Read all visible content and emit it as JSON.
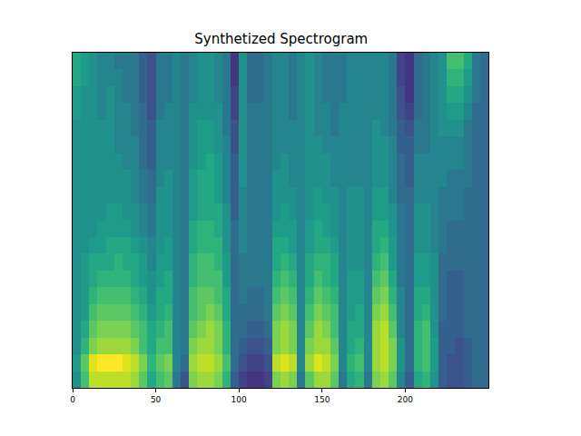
{
  "chart_data": {
    "type": "heatmap",
    "title": "Synthetized Spectrogram",
    "color": "viridis",
    "tick_labels": "x",
    "xlim": [
      0,
      250
    ],
    "xticks": [
      0,
      50,
      100,
      150,
      200
    ],
    "ylim": [
      -0.5,
      19.5
    ],
    "zlim": [
      0,
      10
    ],
    "x": [
      2.5,
      7.5,
      12.5,
      17.5,
      22.5,
      27.5,
      32.5,
      37.5,
      42.5,
      47.5,
      52.5,
      57.5,
      62.5,
      67.5,
      72.5,
      77.5,
      82.5,
      87.5,
      92.5,
      97.5,
      102.5,
      107.5,
      112.5,
      117.5,
      122.5,
      127.5,
      132.5,
      137.5,
      142.5,
      147.5,
      152.5,
      157.5,
      162.5,
      167.5,
      172.5,
      177.5,
      182.5,
      187.5,
      192.5,
      197.5,
      202.5,
      207.5,
      212.5,
      217.5,
      222.5,
      227.5,
      232.5,
      237.5,
      242.5,
      247.5
    ],
    "y": [
      0,
      1,
      2,
      3,
      4,
      5,
      6,
      7,
      8,
      9,
      10,
      11,
      12,
      13,
      14,
      15,
      16,
      17,
      18,
      19
    ],
    "cells_by_x": [
      [
        5,
        5.5,
        5,
        5,
        5,
        5,
        5,
        5,
        5,
        5,
        5,
        5,
        5,
        5,
        5,
        5,
        5.5,
        5.5,
        6,
        6
      ],
      [
        7,
        7.5,
        6.5,
        6,
        5.5,
        5.5,
        5.5,
        5.5,
        5,
        5,
        5,
        5,
        5,
        5,
        5,
        5,
        5,
        5,
        5.5,
        5.5
      ],
      [
        9,
        9.5,
        8,
        7.5,
        7,
        6.5,
        6,
        6,
        5.5,
        5,
        5,
        5,
        5,
        5,
        5,
        5,
        5,
        5,
        5,
        5
      ],
      [
        9,
        10,
        8.5,
        8,
        7.5,
        7,
        6.5,
        6,
        5.5,
        5.5,
        5,
        5,
        5,
        5,
        5,
        5,
        4.5,
        4.5,
        4.5,
        4.5
      ],
      [
        9,
        10,
        8.5,
        8,
        7.5,
        7,
        6.5,
        6,
        6,
        5.5,
        5.5,
        5,
        5,
        5,
        5,
        5,
        5,
        5,
        4.5,
        4.5
      ],
      [
        9,
        10,
        8.5,
        8,
        7.5,
        7,
        6.5,
        6.5,
        6,
        5.5,
        5.5,
        5,
        5,
        5,
        4.5,
        4.5,
        4.5,
        4.5,
        4.5,
        4
      ],
      [
        9,
        9.5,
        8.5,
        8,
        7.5,
        7,
        6.5,
        6,
        6,
        5.5,
        5,
        5,
        5,
        4.5,
        4.5,
        4.5,
        4.5,
        4,
        4,
        4
      ],
      [
        8.5,
        9,
        8,
        7.5,
        7,
        6.5,
        6,
        6,
        5.5,
        5,
        5,
        4.5,
        4.5,
        4.5,
        4.5,
        4,
        4,
        4,
        4,
        4
      ],
      [
        7.5,
        8,
        7,
        7,
        6.5,
        6,
        5.5,
        5.5,
        5,
        4.5,
        4.5,
        4,
        4,
        3.5,
        3.5,
        3.5,
        3.5,
        3,
        3,
        3
      ],
      [
        6,
        6.5,
        6,
        6,
        5.5,
        5,
        5,
        4.5,
        4.5,
        4,
        4,
        3.5,
        3.5,
        3,
        3,
        3,
        2.5,
        2.5,
        2.5,
        2.5
      ],
      [
        7,
        7.5,
        7,
        6.5,
        6,
        6,
        5.5,
        5.5,
        5,
        5,
        5,
        5,
        4.5,
        4.5,
        4.5,
        4.5,
        4,
        4,
        4,
        4
      ],
      [
        7.5,
        8,
        7,
        7,
        6.5,
        6,
        6,
        5.5,
        5.5,
        5,
        5,
        5,
        5,
        4.5,
        4.5,
        4.5,
        4.5,
        4,
        4,
        4
      ],
      [
        4,
        4.5,
        4.5,
        4.5,
        4.5,
        4.5,
        4.5,
        4.5,
        4.5,
        4.5,
        4.5,
        4.5,
        4.5,
        4.5,
        4.5,
        4.5,
        4.5,
        4.5,
        4.5,
        4.5
      ],
      [
        2.5,
        3.5,
        4,
        4,
        4,
        4,
        4,
        4,
        4,
        4,
        4,
        4,
        4,
        4,
        4,
        4,
        4,
        4,
        4,
        4
      ],
      [
        8,
        8.5,
        8,
        7.5,
        7,
        7,
        6.5,
        6.5,
        6,
        6,
        5.5,
        5.5,
        5.5,
        5,
        5,
        5,
        5,
        4.5,
        4.5,
        4.5
      ],
      [
        8.5,
        9,
        8.5,
        8,
        7.5,
        7.5,
        7,
        7,
        6.5,
        6.5,
        6,
        6,
        6,
        5.5,
        5.5,
        5.5,
        5,
        5,
        5,
        5
      ],
      [
        8.5,
        9,
        8.5,
        8.5,
        8,
        7.5,
        7,
        7,
        6.5,
        6.5,
        6,
        6,
        6,
        6,
        5.5,
        5.5,
        5,
        5,
        5,
        5
      ],
      [
        8,
        8.5,
        8,
        8,
        7.5,
        7,
        7,
        6.5,
        6.5,
        6,
        6,
        5.5,
        5.5,
        5.5,
        5,
        5,
        5,
        4.5,
        4.5,
        4.5
      ],
      [
        6.5,
        7,
        6.5,
        6.5,
        6,
        6,
        5.5,
        5.5,
        5,
        5,
        5,
        4.5,
        4.5,
        4.5,
        4.5,
        4,
        4,
        4,
        4,
        4
      ],
      [
        3,
        3.5,
        3.5,
        3.5,
        3.5,
        3.5,
        3.5,
        3.5,
        3.5,
        3.5,
        3,
        3,
        3,
        3,
        2.5,
        2.5,
        2,
        2,
        1.5,
        1.5
      ],
      [
        2,
        2.5,
        3,
        3.5,
        3.5,
        4,
        4,
        4,
        4.5,
        4.5,
        4.5,
        4.5,
        5,
        5,
        5,
        5,
        5,
        5,
        5,
        5
      ],
      [
        1.5,
        2,
        2.5,
        3,
        3.5,
        3.5,
        4,
        4,
        4,
        4,
        4,
        4,
        4,
        4,
        4,
        4,
        4,
        3.5,
        3.5,
        3.5
      ],
      [
        1.5,
        2,
        2.5,
        3,
        3.5,
        3.5,
        4,
        4,
        4,
        4,
        4,
        4,
        4,
        4,
        4,
        4,
        4,
        3.5,
        3.5,
        3.5
      ],
      [
        2,
        2.5,
        3,
        3.5,
        4,
        4,
        4,
        4,
        4,
        4,
        4,
        4,
        4,
        4,
        4,
        4,
        4,
        4,
        4,
        4
      ],
      [
        8,
        9,
        8,
        8,
        7.5,
        7,
        6.5,
        6,
        6,
        5.5,
        5,
        5,
        5,
        4.5,
        4.5,
        4.5,
        4.5,
        4.5,
        4.5,
        4.5
      ],
      [
        8.5,
        9.5,
        8.5,
        8.5,
        8,
        7.5,
        7,
        6.5,
        6,
        5.5,
        5.5,
        5,
        5,
        5,
        4.5,
        4.5,
        4.5,
        4.5,
        4.5,
        4.5
      ],
      [
        8,
        9,
        8,
        8,
        7.5,
        7,
        6.5,
        6,
        5.5,
        5.5,
        5,
        5,
        4.5,
        4.5,
        4.5,
        4.5,
        4,
        4,
        4,
        4
      ],
      [
        4,
        4.5,
        4.5,
        4.5,
        4.5,
        4.5,
        4.5,
        4.5,
        4.5,
        4.5,
        4.5,
        4.5,
        4.5,
        4.5,
        4.5,
        4.5,
        4.5,
        4.5,
        4.5,
        4.5
      ],
      [
        7.5,
        8.5,
        8,
        7.5,
        7,
        6.5,
        6,
        6,
        5.5,
        5.5,
        5,
        5,
        5,
        5,
        5,
        5,
        5,
        5,
        5,
        5
      ],
      [
        8.5,
        9.5,
        8.5,
        8.5,
        8,
        7.5,
        7,
        6.5,
        6,
        6,
        5.5,
        5.5,
        5,
        5,
        5,
        4.5,
        4.5,
        4.5,
        4.5,
        4.5
      ],
      [
        8.5,
        9,
        8.5,
        8,
        7.5,
        7,
        6.5,
        6.5,
        6,
        5.5,
        5.5,
        5,
        5,
        5,
        4.5,
        4.5,
        4.5,
        4,
        4,
        4
      ],
      [
        7.5,
        8,
        7.5,
        7,
        7,
        6.5,
        6,
        6,
        5.5,
        5,
        5,
        5,
        4.5,
        4.5,
        4.5,
        4,
        4,
        4,
        4,
        4
      ],
      [
        4,
        4.5,
        4.5,
        4.5,
        4.5,
        4.5,
        4.5,
        4.5,
        4.5,
        4.5,
        4.5,
        4.5,
        4.5,
        4.5,
        4.5,
        4.5,
        4.5,
        4,
        4,
        4
      ],
      [
        6,
        6.5,
        6,
        6,
        5.5,
        5.5,
        5.5,
        5,
        5,
        5,
        5,
        5,
        4.5,
        4.5,
        4.5,
        4.5,
        4.5,
        4.5,
        4.5,
        4.5
      ],
      [
        6.5,
        7,
        6.5,
        6,
        6,
        5.5,
        5.5,
        5,
        5,
        5,
        5,
        5,
        4.5,
        4.5,
        4.5,
        4.5,
        4.5,
        4.5,
        4.5,
        4.5
      ],
      [
        4,
        4.5,
        4.5,
        4.5,
        4.5,
        4.5,
        4.5,
        4.5,
        4.5,
        4.5,
        4.5,
        4.5,
        4.5,
        4.5,
        4.5,
        4.5,
        4.5,
        4.5,
        4.5,
        4.5
      ],
      [
        8,
        8.5,
        8.5,
        8.5,
        8,
        7.5,
        7,
        6.5,
        6,
        6,
        5.5,
        5.5,
        5,
        5,
        5,
        5,
        4.5,
        4.5,
        4.5,
        4.5
      ],
      [
        8.5,
        9,
        9,
        9,
        8.5,
        8,
        7.5,
        7,
        6.5,
        6,
        5.5,
        5.5,
        5,
        5,
        5,
        4.5,
        4.5,
        4.5,
        4.5,
        4.5
      ],
      [
        7.5,
        8,
        8,
        7.5,
        7,
        6.5,
        6,
        5.5,
        5.5,
        5,
        5,
        4.5,
        4.5,
        4.5,
        4.5,
        4,
        4,
        4,
        4,
        4
      ],
      [
        4.5,
        5,
        5,
        4.5,
        4.5,
        4.5,
        4,
        4,
        4,
        4,
        4,
        3.5,
        3.5,
        3.5,
        3,
        3,
        2.5,
        2.5,
        2,
        2
      ],
      [
        3,
        3.5,
        3.5,
        3.5,
        3.5,
        3.5,
        3.5,
        3.5,
        3.5,
        3.5,
        3.5,
        3.5,
        3,
        3,
        3,
        2.5,
        2,
        1.5,
        1.5,
        1.5
      ],
      [
        6,
        6.5,
        6.5,
        6.5,
        6,
        6,
        5.5,
        5.5,
        5,
        5,
        5,
        4.5,
        4.5,
        4.5,
        4,
        4,
        3.5,
        3.5,
        3.5,
        3.5
      ],
      [
        6.5,
        7,
        7,
        7,
        6.5,
        6,
        5.5,
        5.5,
        5,
        5,
        5,
        4.5,
        4.5,
        4.5,
        4,
        4,
        4,
        4,
        4,
        4
      ],
      [
        5,
        5.5,
        5.5,
        5,
        5,
        5,
        5,
        5,
        4.5,
        4.5,
        4.5,
        4.5,
        4.5,
        4.5,
        4.5,
        4.5,
        4.5,
        4.5,
        4.5,
        4.5
      ],
      [
        3,
        3,
        3,
        3,
        3.5,
        3.5,
        3.5,
        3.5,
        4,
        4,
        4,
        4,
        4.5,
        4.5,
        4.5,
        5,
        5,
        5,
        5,
        5
      ],
      [
        2.5,
        2.5,
        3,
        3,
        3,
        3,
        3,
        3.5,
        3.5,
        3.5,
        4,
        4,
        4,
        4.5,
        4.5,
        5,
        5.5,
        6,
        6.5,
        7
      ],
      [
        2.5,
        2.5,
        2.5,
        3,
        3,
        3,
        3,
        3.5,
        3.5,
        3.5,
        4,
        4,
        4,
        4.5,
        4.5,
        5,
        5.5,
        6,
        6.5,
        7
      ],
      [
        3,
        3,
        3,
        3.5,
        3.5,
        3.5,
        3.5,
        3.5,
        3.5,
        3.5,
        3.5,
        3.5,
        4,
        4,
        4,
        4,
        4.5,
        5,
        5.5,
        6
      ],
      [
        3.5,
        3.5,
        3.5,
        3.5,
        3.5,
        3.5,
        3.5,
        3.5,
        3.5,
        3.5,
        3.5,
        3.5,
        3.5,
        3.5,
        3.5,
        3.5,
        3.5,
        4,
        4,
        4
      ],
      [
        3.5,
        3.5,
        3.5,
        3.5,
        3.5,
        3.5,
        3.5,
        3.5,
        3.5,
        3.5,
        3.5,
        3.5,
        3.5,
        3.5,
        3.5,
        3.5,
        3.5,
        3.5,
        3.5,
        3.5
      ]
    ]
  }
}
